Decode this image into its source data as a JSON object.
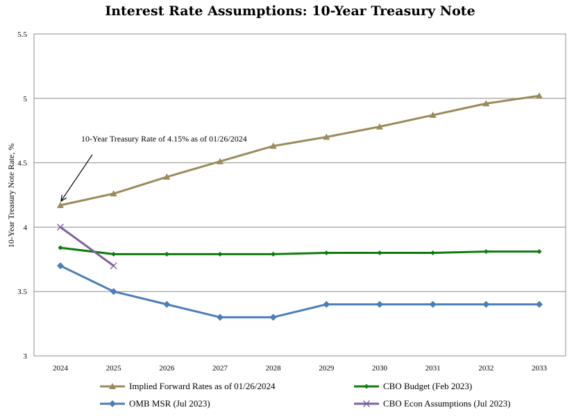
{
  "chart_data": {
    "type": "line",
    "title": "Interest Rate Assumptions: 10-Year Treasury Note",
    "ylabel": "10-Year Treasury Note Rate, %",
    "xlabel": "",
    "ylim": [
      3,
      5.5
    ],
    "yticks": [
      "3",
      "3.5",
      "4",
      "4.5",
      "5",
      "5.5"
    ],
    "categories": [
      "2024",
      "2025",
      "2026",
      "2027",
      "2028",
      "2029",
      "2030",
      "2031",
      "2032",
      "2033"
    ],
    "grid": "horizontal",
    "legend_position": "bottom",
    "series": [
      {
        "name": "Implied Forward Rates as of 01/26/2024",
        "color": "#9b8b5a",
        "marker": "triangle",
        "values": [
          4.17,
          4.26,
          4.39,
          4.51,
          4.63,
          4.7,
          4.78,
          4.87,
          4.96,
          5.02
        ]
      },
      {
        "name": "CBO Budget (Feb 2023)",
        "color": "#0e7a0d",
        "marker": "diamond-small",
        "values": [
          3.84,
          3.79,
          3.79,
          3.79,
          3.79,
          3.8,
          3.8,
          3.8,
          3.81,
          3.81
        ]
      },
      {
        "name": "OMB MSR (Jul 2023)",
        "color": "#4a7ebb",
        "marker": "diamond",
        "values": [
          3.7,
          3.5,
          3.4,
          3.3,
          3.3,
          3.4,
          3.4,
          3.4,
          3.4,
          3.4
        ]
      },
      {
        "name": "CBO Econ Assumptions (Jul 2023)",
        "color": "#7d5fa0",
        "marker": "x",
        "values": [
          4.0,
          3.7,
          null,
          null,
          null,
          null,
          null,
          null,
          null,
          null
        ]
      }
    ],
    "annotations": [
      {
        "text": "10-Year Treasury Rate of 4.15% as of 01/26/2024",
        "points_to": {
          "x": "2024",
          "y": 4.17
        }
      }
    ]
  }
}
